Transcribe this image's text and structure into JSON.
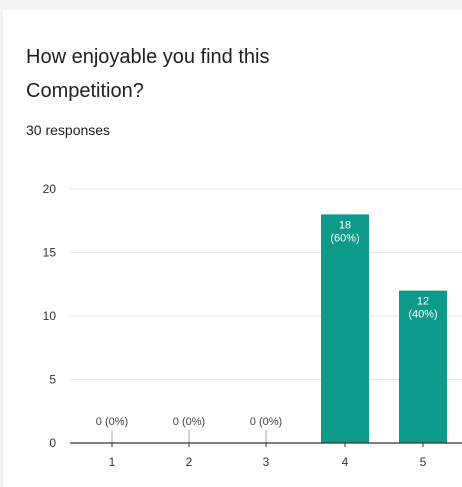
{
  "question": {
    "title": "How enjoyable you find this Competition?"
  },
  "summary": {
    "responses": "30 responses"
  },
  "colors": {
    "bar": "#0e9a8a",
    "grid": "#e6e6e6",
    "axis": "#333333",
    "text": "#202124",
    "label_on_bar": "#ffffff",
    "label_zero": "#444444"
  },
  "chart_data": {
    "type": "bar",
    "categories": [
      "1",
      "2",
      "3",
      "4",
      "5"
    ],
    "values": [
      0,
      0,
      0,
      18,
      12
    ],
    "data_labels": [
      "0 (0%)",
      "0 (0%)",
      "0 (0%)",
      "18\n(60%)",
      "12\n(40%)"
    ],
    "ylim": [
      0,
      20
    ],
    "yticks": [
      0,
      5,
      10,
      15,
      20
    ],
    "title": "",
    "xlabel": "",
    "ylabel": "",
    "grid": true,
    "legend": null
  }
}
